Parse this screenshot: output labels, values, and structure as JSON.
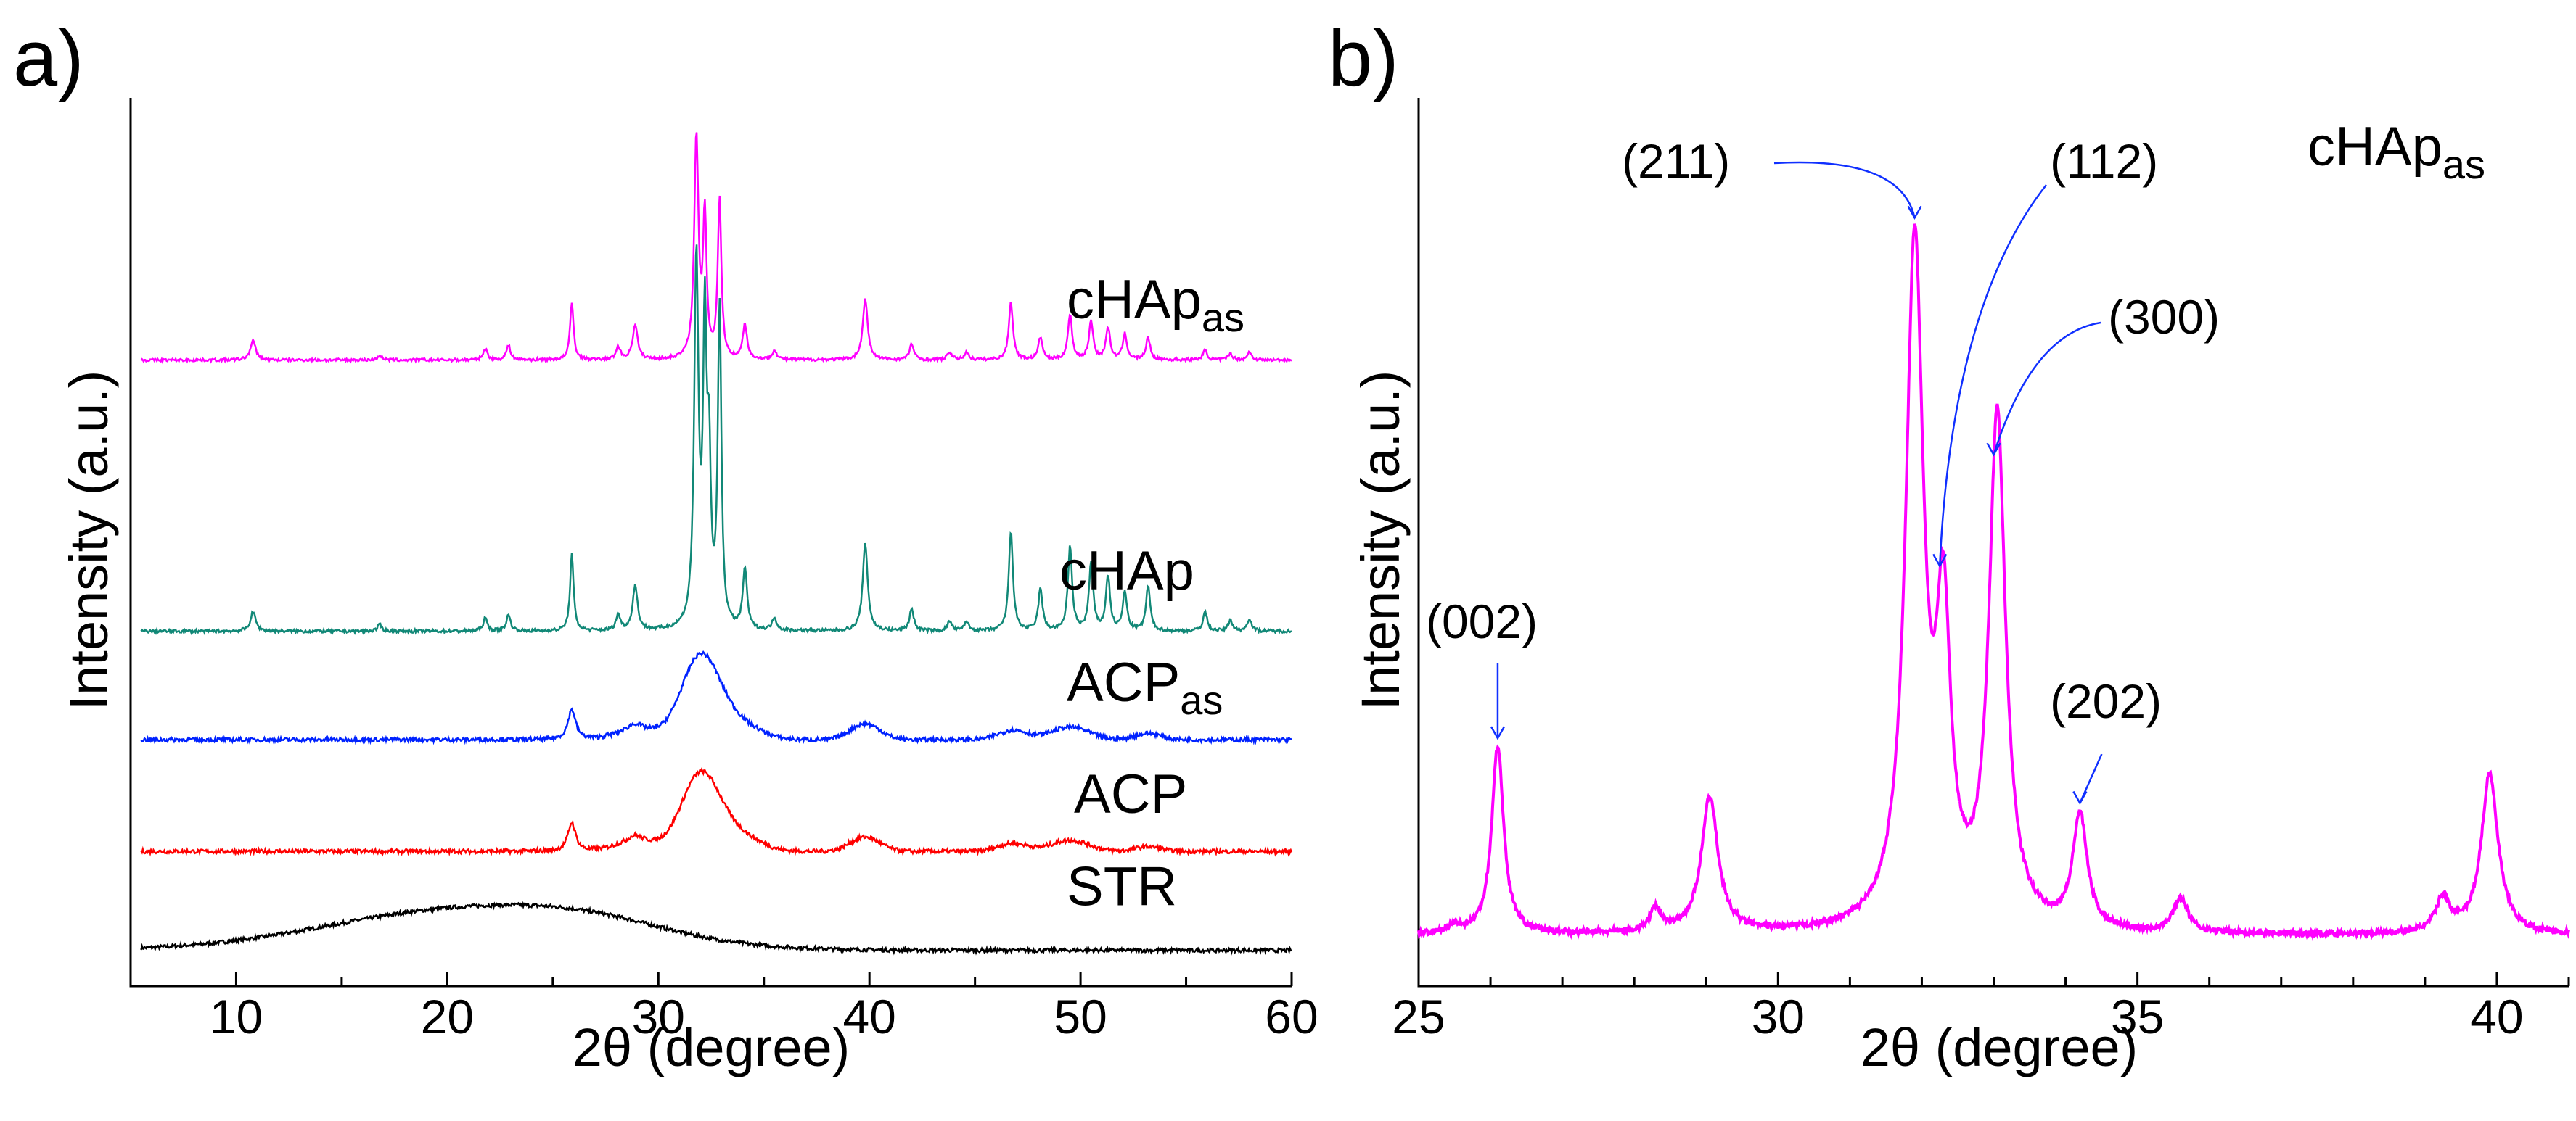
{
  "chart_data": [
    {
      "panel": "a)",
      "type": "line",
      "xlabel": "2θ (degree)",
      "ylabel": "Intensity (a.u.)",
      "xlim": [
        5,
        60
      ],
      "xticks": [
        10,
        20,
        30,
        40,
        50,
        60
      ],
      "y_ticks_shown": false,
      "series": [
        {
          "name": "STR",
          "label_main": "STR",
          "label_sub": "",
          "color": "#000000",
          "offset": 0,
          "baseline": 2,
          "broad_humps": [
            [
              21,
              26,
              6.5
            ],
            [
              27,
              7,
              3.5
            ]
          ],
          "noise": 1.2,
          "peaks": []
        },
        {
          "name": "ACP",
          "label_main": "ACP",
          "label_sub": "",
          "color": "#ff0000",
          "offset": 58,
          "baseline": 6,
          "broad_humps": [
            [
              32.0,
              48,
              0.9
            ],
            [
              33.8,
              10,
              1.0
            ],
            [
              39.8,
              9,
              0.7
            ],
            [
              46.8,
              5,
              0.7
            ],
            [
              49.5,
              7,
              0.9
            ],
            [
              29,
              6,
              1.0
            ],
            [
              53.2,
              3,
              0.6
            ]
          ],
          "noise": 1.3,
          "peaks": [
            [
              25.9,
              18,
              0.22
            ],
            [
              28.9,
              4,
              0.4
            ]
          ]
        },
        {
          "name": "ACP_as",
          "label_main": "ACP",
          "label_sub": "as",
          "color": "#0022ff",
          "offset": 128,
          "baseline": 6,
          "broad_humps": [
            [
              32.0,
              52,
              0.9
            ],
            [
              33.8,
              10,
              1.0
            ],
            [
              39.8,
              10,
              0.7
            ],
            [
              46.8,
              6,
              0.7
            ],
            [
              49.5,
              8,
              0.9
            ],
            [
              29,
              6,
              1.0
            ],
            [
              53.2,
              4,
              0.6
            ]
          ],
          "noise": 1.3,
          "peaks": [
            [
              25.9,
              19,
              0.22
            ],
            [
              28.9,
              4,
              0.4
            ]
          ]
        },
        {
          "name": "cHAp",
          "label_main": "cHAp",
          "label_sub": "",
          "color": "#118877",
          "offset": 198,
          "baseline": 4,
          "broad_humps": [],
          "noise": 1.0,
          "peaks": [
            [
              10.8,
              12,
              0.15
            ],
            [
              16.8,
              4,
              0.12
            ],
            [
              21.8,
              8,
              0.12
            ],
            [
              22.9,
              10,
              0.12
            ],
            [
              25.9,
              48,
              0.1
            ],
            [
              28.1,
              10,
              0.12
            ],
            [
              28.9,
              28,
              0.14
            ],
            [
              31.8,
              230,
              0.12
            ],
            [
              32.2,
              180,
              0.1
            ],
            [
              32.4,
              95,
              0.1
            ],
            [
              32.9,
              200,
              0.1
            ],
            [
              34.1,
              38,
              0.12
            ],
            [
              35.5,
              8,
              0.12
            ],
            [
              39.8,
              55,
              0.14
            ],
            [
              42.0,
              14,
              0.12
            ],
            [
              43.8,
              6,
              0.12
            ],
            [
              44.6,
              6,
              0.12
            ],
            [
              46.7,
              62,
              0.12
            ],
            [
              48.1,
              26,
              0.12
            ],
            [
              49.5,
              52,
              0.12
            ],
            [
              50.5,
              42,
              0.12
            ],
            [
              51.3,
              34,
              0.12
            ],
            [
              52.1,
              24,
              0.12
            ],
            [
              53.2,
              28,
              0.12
            ],
            [
              55.9,
              12,
              0.12
            ],
            [
              57.1,
              7,
              0.12
            ],
            [
              58.0,
              8,
              0.12
            ]
          ]
        },
        {
          "name": "cHAp_as",
          "label_main": "cHAp",
          "label_sub": "as",
          "color": "#ff00ff",
          "offset": 368,
          "baseline": 4,
          "broad_humps": [],
          "noise": 0.9,
          "peaks": [
            [
              10.8,
              12,
              0.15
            ],
            [
              16.8,
              3,
              0.12
            ],
            [
              21.8,
              7,
              0.12
            ],
            [
              22.9,
              9,
              0.12
            ],
            [
              25.9,
              36,
              0.1
            ],
            [
              28.1,
              8,
              0.12
            ],
            [
              28.9,
              22,
              0.14
            ],
            [
              31.8,
              138,
              0.12
            ],
            [
              32.2,
              88,
              0.1
            ],
            [
              32.9,
              100,
              0.1
            ],
            [
              34.1,
              22,
              0.12
            ],
            [
              35.5,
              6,
              0.12
            ],
            [
              39.8,
              38,
              0.14
            ],
            [
              42.0,
              10,
              0.12
            ],
            [
              43.8,
              5,
              0.12
            ],
            [
              44.6,
              5,
              0.12
            ],
            [
              46.7,
              36,
              0.12
            ],
            [
              48.1,
              14,
              0.12
            ],
            [
              49.5,
              28,
              0.12
            ],
            [
              50.5,
              24,
              0.12
            ],
            [
              51.3,
              20,
              0.12
            ],
            [
              52.1,
              16,
              0.12
            ],
            [
              53.2,
              14,
              0.12
            ],
            [
              55.9,
              6,
              0.12
            ],
            [
              57.1,
              4,
              0.12
            ],
            [
              58.0,
              5,
              0.12
            ]
          ]
        }
      ]
    },
    {
      "panel": "b)",
      "type": "line",
      "xlabel": "2θ (degree)",
      "ylabel": "Intensity (a.u.)",
      "xlim": [
        25,
        41
      ],
      "xticks": [
        25,
        30,
        35,
        40
      ],
      "y_ticks_shown": false,
      "series_label_main": "cHAp",
      "series_label_sub": "as",
      "color": "#ff00ff",
      "baseline": 0,
      "peaks": [
        [
          25.5,
          4,
          0.1
        ],
        [
          26.1,
          100,
          0.1
        ],
        [
          28.3,
          12,
          0.1
        ],
        [
          29.05,
          72,
          0.14
        ],
        [
          31.9,
          360,
          0.15
        ],
        [
          32.3,
          150,
          0.12
        ],
        [
          33.05,
          270,
          0.14
        ],
        [
          34.2,
          60,
          0.12
        ],
        [
          35.6,
          18,
          0.12
        ],
        [
          39.25,
          18,
          0.12
        ],
        [
          39.9,
          85,
          0.14
        ]
      ],
      "annotations": [
        {
          "text": "(002)",
          "x": 26.1
        },
        {
          "text": "(211)",
          "x": 31.9
        },
        {
          "text": "(112)",
          "x": 32.25
        },
        {
          "text": "(300)",
          "x": 33.0
        },
        {
          "text": "(202)",
          "x": 34.2
        }
      ]
    }
  ]
}
